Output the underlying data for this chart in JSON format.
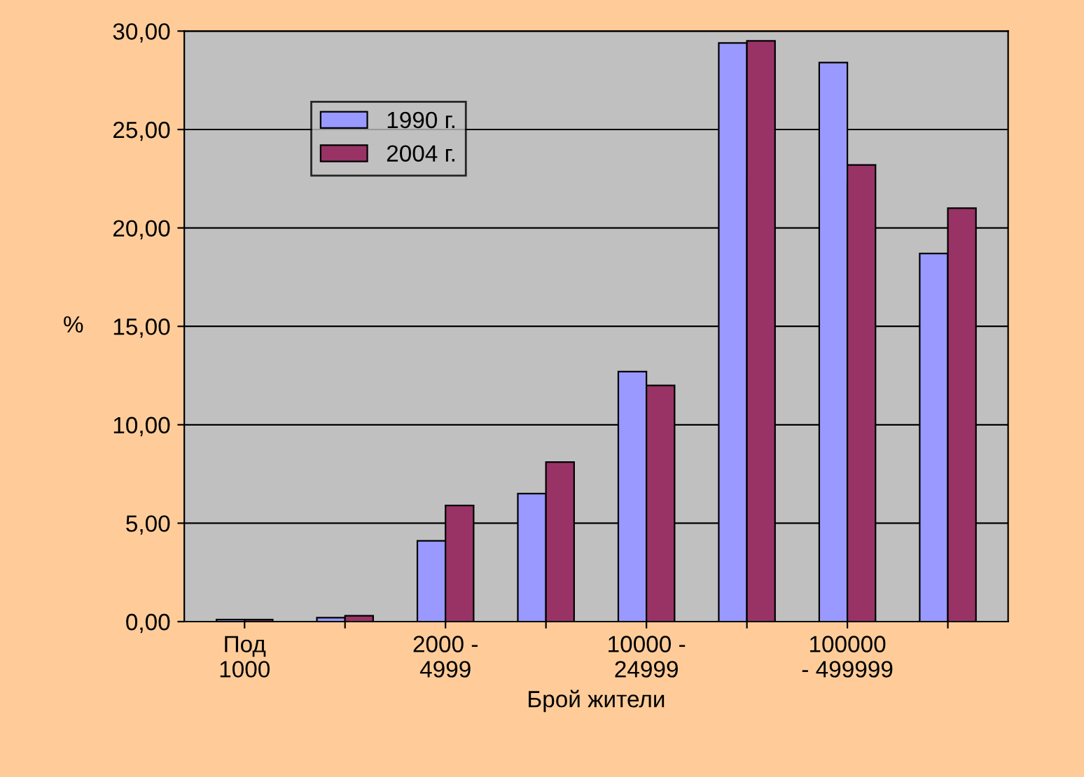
{
  "chart_data": {
    "type": "bar",
    "xlabel": "Брой жители",
    "ylabel": "%",
    "categories": [
      "Под\n1000",
      null,
      "2000 -\n4999",
      null,
      "10000 -\n24999",
      null,
      "100000\n- 499999",
      null
    ],
    "series": [
      {
        "name": "1990 г.",
        "color": "#9999ff",
        "values": [
          0.1,
          0.2,
          4.1,
          6.5,
          12.7,
          29.4,
          28.4,
          18.7
        ]
      },
      {
        "name": "2004 г.",
        "color": "#993366",
        "values": [
          0.1,
          0.3,
          5.9,
          8.1,
          12.0,
          29.5,
          23.2,
          21.0
        ]
      }
    ],
    "ylim": [
      0,
      30
    ],
    "yticks": [
      {
        "value": 0,
        "label": "0,00"
      },
      {
        "value": 5,
        "label": "5,00"
      },
      {
        "value": 10,
        "label": "10,00"
      },
      {
        "value": 15,
        "label": "15,00"
      },
      {
        "value": 20,
        "label": "20,00"
      },
      {
        "value": 25,
        "label": "25,00"
      },
      {
        "value": 30,
        "label": "30,00"
      }
    ],
    "grid": "y",
    "legend": "top left"
  }
}
